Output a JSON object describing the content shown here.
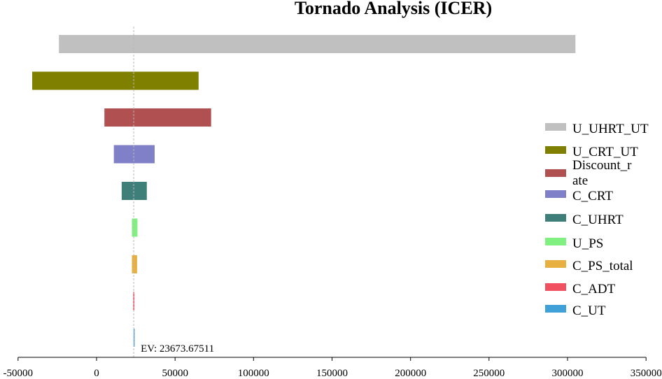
{
  "chart_data": {
    "type": "bar",
    "orientation": "horizontal",
    "title": "Tornado Analysis (ICER)",
    "xlabel": "",
    "ylabel": "",
    "xlim": [
      -50000,
      350000
    ],
    "x_ticks": [
      -50000,
      0,
      50000,
      100000,
      150000,
      200000,
      250000,
      300000,
      350000
    ],
    "x_tick_labels": [
      "-50000",
      "0",
      "50000",
      "100000",
      "150000",
      "200000",
      "250000",
      "300000",
      "350000"
    ],
    "grid": false,
    "legend_position": "right",
    "expected_value": 23673.67511,
    "ev_label": "EV: 23673.67511",
    "bars": [
      {
        "name": "U_UHRT_UT",
        "low": -24000,
        "high": 305000,
        "color": "#c0c0c0",
        "legend_lines": [
          "U_UHRT_UT"
        ]
      },
      {
        "name": "U_CRT_UT",
        "low": -41000,
        "high": 65000,
        "color": "#808000",
        "legend_lines": [
          "U_CRT_UT"
        ]
      },
      {
        "name": "Discount_rate",
        "low": 5000,
        "high": 73000,
        "color": "#b05050",
        "legend_lines": [
          "Discount_r",
          "ate"
        ]
      },
      {
        "name": "C_CRT",
        "low": 11000,
        "high": 37000,
        "color": "#8080c8",
        "legend_lines": [
          "C_CRT"
        ]
      },
      {
        "name": "C_UHRT",
        "low": 16000,
        "high": 32000,
        "color": "#3f7f7a",
        "legend_lines": [
          "C_UHRT"
        ]
      },
      {
        "name": "U_PS",
        "low": 22500,
        "high": 26000,
        "color": "#80f080",
        "legend_lines": [
          "U_PS"
        ]
      },
      {
        "name": "C_PS_total",
        "low": 22500,
        "high": 25800,
        "color": "#e8b040",
        "legend_lines": [
          "C_PS_total"
        ]
      },
      {
        "name": "C_ADT",
        "low": 23300,
        "high": 24100,
        "color": "#f05060",
        "legend_lines": [
          "C_ADT"
        ]
      },
      {
        "name": "C_UT",
        "low": 23600,
        "high": 23750,
        "color": "#40a0d8",
        "legend_lines": [
          "C_UT"
        ]
      }
    ]
  }
}
